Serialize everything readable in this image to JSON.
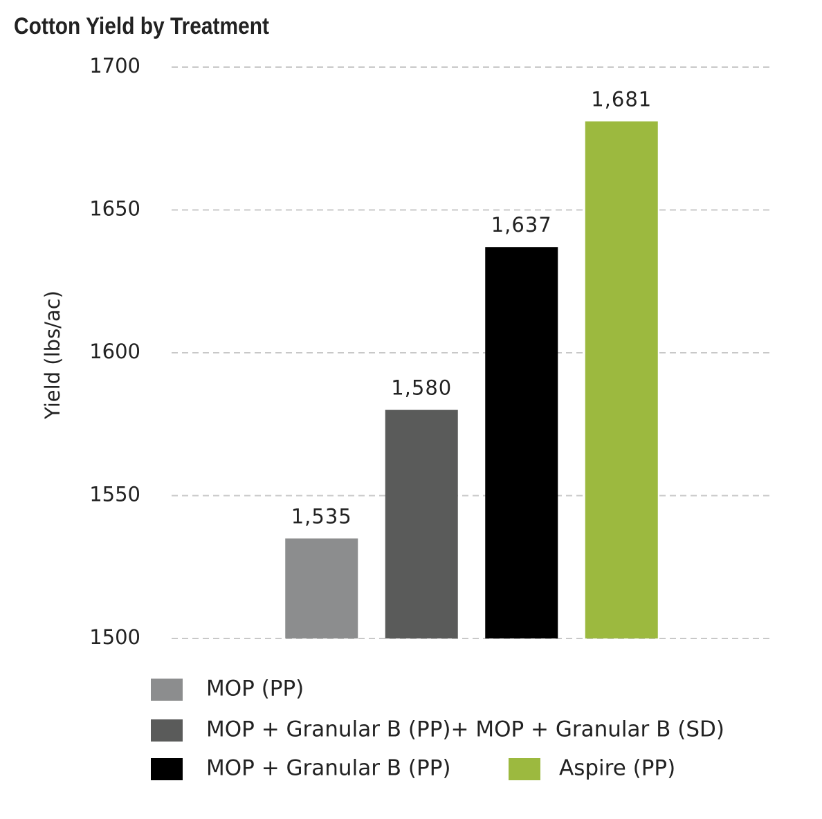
{
  "chart_data": {
    "type": "bar",
    "title": "Cotton Yield by Treatment",
    "y_label": "Yield (lbs/ac)",
    "ylim": [
      1500,
      1700
    ],
    "yticks": [
      1500,
      1550,
      1600,
      1650,
      1700
    ],
    "grid": true,
    "series": [
      {
        "name": "MOP (PP)",
        "color": "#8c8d8e",
        "values": [
          1535
        ],
        "value_labels": [
          "1,535"
        ]
      },
      {
        "name": "MOP + Granular B (PP)+ MOP + Granular B (SD)",
        "color": "#5a5b5a",
        "values": [
          1580
        ],
        "value_labels": [
          "1,580"
        ]
      },
      {
        "name": "MOP + Granular B (PP)",
        "color": "#000000",
        "values": [
          1637
        ],
        "value_labels": [
          "1,637"
        ]
      },
      {
        "name": "Aspire (PP)",
        "color": "#9cb93f",
        "values": [
          1681
        ],
        "value_labels": [
          "1,681"
        ]
      }
    ]
  }
}
